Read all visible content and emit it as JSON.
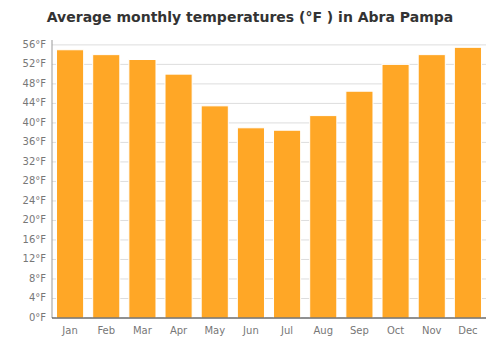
{
  "chart_data": {
    "type": "bar",
    "title": "Average monthly temperatures (°F ) in Abra Pampa",
    "categories": [
      "Jan",
      "Feb",
      "Mar",
      "Apr",
      "May",
      "Jun",
      "Jul",
      "Aug",
      "Sep",
      "Oct",
      "Nov",
      "Dec"
    ],
    "values": [
      55.0,
      54.0,
      53.0,
      50.0,
      43.5,
      39.0,
      38.5,
      41.5,
      46.5,
      52.0,
      54.0,
      55.5
    ],
    "color": "#FFA726",
    "ylim": [
      0,
      57
    ],
    "yticks": [
      {
        "value": 0,
        "label": "0°F"
      },
      {
        "value": 4,
        "label": "4°F"
      },
      {
        "value": 8,
        "label": "8°F"
      },
      {
        "value": 12,
        "label": "12°F"
      },
      {
        "value": 16,
        "label": "16°F"
      },
      {
        "value": 20,
        "label": "20°F"
      },
      {
        "value": 24,
        "label": "24°F"
      },
      {
        "value": 28,
        "label": "28°F"
      },
      {
        "value": 32,
        "label": "32°F"
      },
      {
        "value": 36,
        "label": "36°F"
      },
      {
        "value": 40,
        "label": "40°F"
      },
      {
        "value": 44,
        "label": "44°F"
      },
      {
        "value": 48,
        "label": "48°F"
      },
      {
        "value": 52,
        "label": "52°F"
      },
      {
        "value": 56,
        "label": "56°F"
      }
    ],
    "grid": true
  }
}
